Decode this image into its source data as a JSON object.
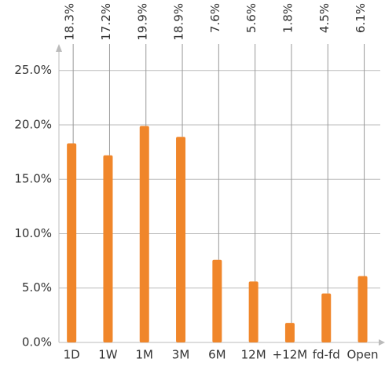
{
  "chart_data": {
    "type": "bar",
    "categories": [
      "1D",
      "1W",
      "1M",
      "3M",
      "6M",
      "12M",
      "+12M",
      "fd-fd",
      "Open"
    ],
    "values": [
      18.3,
      17.2,
      19.9,
      18.9,
      7.6,
      5.6,
      1.8,
      4.5,
      6.1
    ],
    "value_labels": [
      "18.3%",
      "17.2%",
      "19.9%",
      "18.9%",
      "7.6%",
      "5.6%",
      "1.8%",
      "4.5%",
      "6.1%"
    ],
    "color": "#f0862a",
    "ylim": [
      0,
      27
    ],
    "yticks": [
      {
        "value": 0,
        "label": "0.0%"
      },
      {
        "value": 5,
        "label": "5.0%"
      },
      {
        "value": 10,
        "label": "10.0%"
      },
      {
        "value": 15,
        "label": "15.0%"
      },
      {
        "value": 20,
        "label": "20.0%"
      },
      {
        "value": 25,
        "label": "25.0%"
      }
    ],
    "grid": true
  }
}
